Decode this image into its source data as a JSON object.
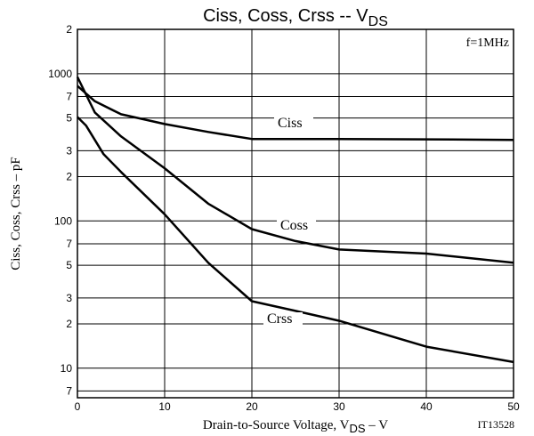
{
  "chart_data": {
    "type": "line",
    "title": "Ciss, Coss, Crss -- V",
    "title_sub": "DS",
    "xlabel": "Drain-to-Source Voltage, V",
    "xlabel_sub": "DS",
    "xlabel_end": " – V",
    "ylabel": "Ciss, Coss, Crss – pF",
    "annotations": [
      "f=1MHz",
      "IT13528"
    ],
    "xlim": [
      0,
      50
    ],
    "xticks": [
      0,
      10,
      20,
      30,
      40,
      50
    ],
    "ylim": [
      6.3,
      2000
    ],
    "log_y": true,
    "grid": true,
    "yticks": [
      {
        "value": 2000,
        "label": "2"
      },
      1000,
      {
        "value": 700,
        "label": "7"
      },
      {
        "value": 500,
        "label": "5"
      },
      {
        "value": 300,
        "label": "3"
      },
      {
        "value": 200,
        "label": "2"
      },
      100,
      {
        "value": 70,
        "label": "7"
      },
      {
        "value": 50,
        "label": "5"
      },
      {
        "value": 30,
        "label": "3"
      },
      {
        "value": 20,
        "label": "2"
      },
      10,
      7
    ],
    "series": [
      {
        "name": "Ciss",
        "color": "#000000",
        "x": [
          0,
          2,
          5,
          10,
          15,
          20,
          30,
          40,
          50
        ],
        "values": [
          825,
          650,
          530,
          455,
          402,
          360,
          360,
          358,
          355
        ]
      },
      {
        "name": "Coss",
        "color": "#000000",
        "x": [
          0,
          2,
          5,
          10,
          15,
          20,
          25,
          30,
          40,
          50
        ],
        "values": [
          950,
          545,
          375,
          228,
          131,
          88,
          73,
          64,
          60,
          52
        ]
      },
      {
        "name": "Crss",
        "color": "#000000",
        "x": [
          0,
          1,
          3,
          5,
          10,
          15,
          20,
          25,
          30,
          40,
          50
        ],
        "values": [
          508,
          443,
          284,
          215,
          111,
          52,
          28.5,
          24.5,
          21,
          14,
          11
        ]
      }
    ]
  }
}
